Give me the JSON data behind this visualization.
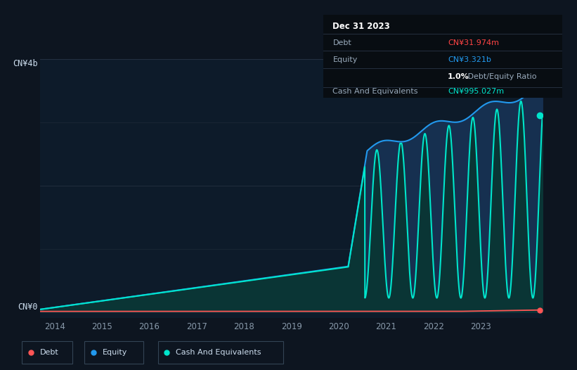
{
  "background_color": "#0d1520",
  "chart_bg_color": "#0d1b2a",
  "title_box": {
    "date": "Dec 31 2023",
    "debt_label": "Debt",
    "debt_value": "CN¥31.974m",
    "debt_color": "#ff4444",
    "equity_label": "Equity",
    "equity_value": "CN¥3.321b",
    "equity_color": "#2299ee",
    "ratio_bold": "1.0%",
    "ratio_text": " Debt/Equity Ratio",
    "cash_label": "Cash And Equivalents",
    "cash_value": "CN¥995.027m",
    "cash_color": "#00e5cc"
  },
  "y_label_top": "CN¥4b",
  "y_label_bottom": "CN¥0",
  "x_ticks": [
    "2014",
    "2015",
    "2016",
    "2017",
    "2018",
    "2019",
    "2020",
    "2021",
    "2022",
    "2023"
  ],
  "legend": [
    {
      "label": "Debt",
      "color": "#ff5555"
    },
    {
      "label": "Equity",
      "color": "#2299ee"
    },
    {
      "label": "Cash And Equivalents",
      "color": "#00e5cc"
    }
  ],
  "y_max": 4.0,
  "equity_color_fill": "#163050",
  "equity_color_line": "#2299ee",
  "cash_color_fill": "#0a3535",
  "cash_color_line": "#00e5cc",
  "debt_color_line": "#ff5555"
}
